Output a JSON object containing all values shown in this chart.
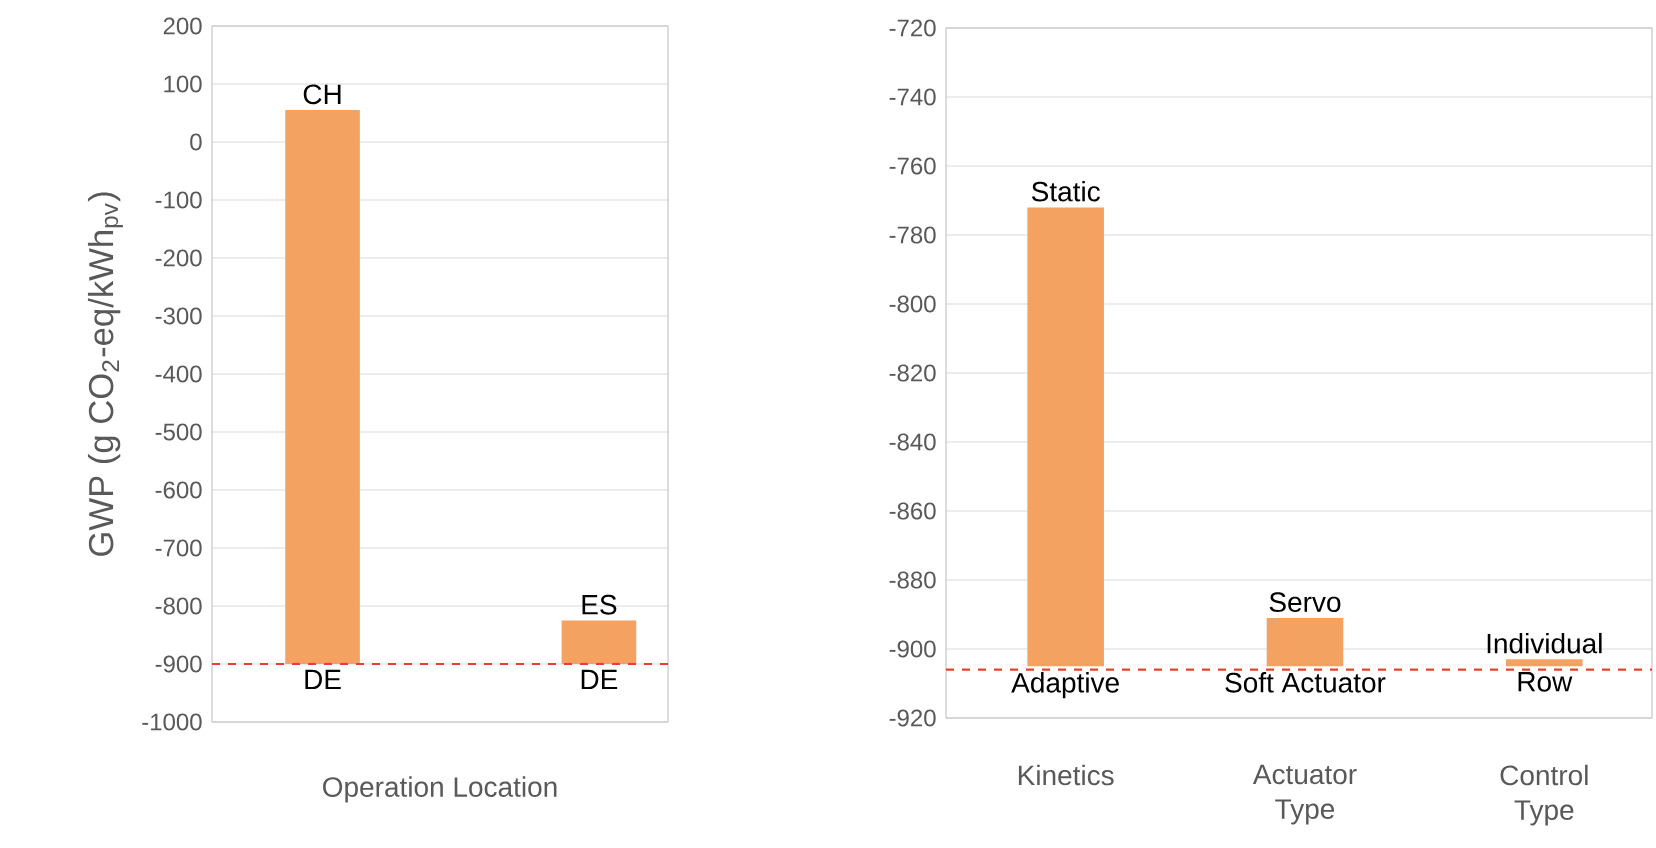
{
  "chart_data": [
    {
      "type": "bar",
      "categories": [
        null,
        null
      ],
      "xlabel": "Operation Location",
      "ylabel": "GWP (g CO$_{2}$-eq/kWh$_{pv}$)",
      "base": [
        -900,
        -900
      ],
      "values": [
        955,
        75
      ],
      "value_labels": [
        "CH",
        "ES"
      ],
      "color": "#f4a261",
      "annotations": [
        {
          "text": "DE",
          "y": -900
        },
        {
          "text": "DE",
          "y": -900
        }
      ],
      "ylim": [
        -1000,
        200
      ],
      "yticks": [
        -1000,
        -900,
        -800,
        -700,
        -600,
        -500,
        -400,
        -300,
        -200,
        -100,
        0,
        100,
        200
      ],
      "grid": "y",
      "ref_lines": [
        {
          "axis": "y",
          "value": -900,
          "color": "#e8402a",
          "line_style": "dashed"
        }
      ]
    },
    {
      "type": "bar",
      "categories": [
        "Kinetics",
        "Actuator Type",
        "Control Type"
      ],
      "base": [
        -905,
        -905,
        -905
      ],
      "values": [
        133,
        14,
        2
      ],
      "value_labels": [
        "Static",
        "Servo",
        "Individual"
      ],
      "color": "#f4a261",
      "annotations": [
        {
          "text": "Adaptive",
          "x": "Kinetics",
          "y": -905
        },
        {
          "text": "Soft Actuator",
          "x": "Actuator Type",
          "y": -905
        },
        {
          "text": "Row",
          "x": "Control Type",
          "y": -905
        }
      ],
      "ylim": [
        -920,
        -720
      ],
      "yticks": [
        -920,
        -900,
        -880,
        -860,
        -840,
        -820,
        -800,
        -780,
        -760,
        -740,
        -720
      ],
      "grid": "y",
      "ref_lines": [
        {
          "axis": "y",
          "value": -906,
          "color": "#e8402a",
          "line_style": "dashed"
        }
      ]
    }
  ]
}
